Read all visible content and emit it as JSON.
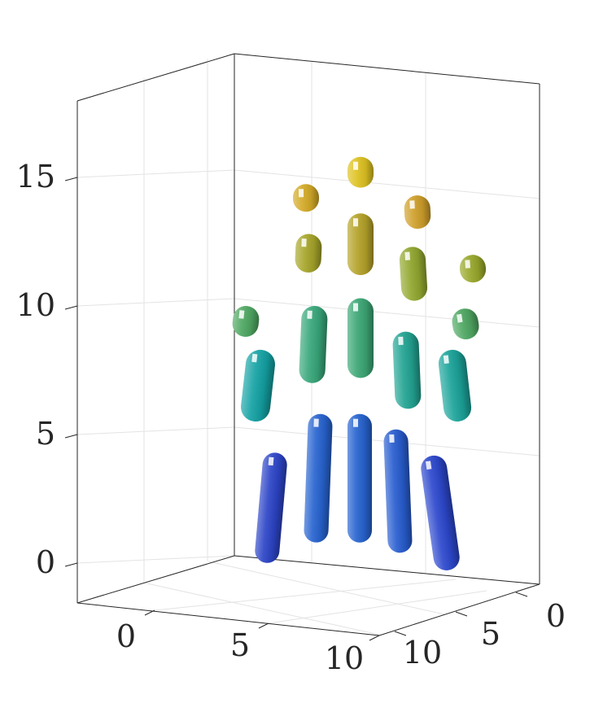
{
  "chart_data": {
    "type": "3d-surface",
    "title": "",
    "xlabel": "",
    "ylabel": "",
    "zlabel": "",
    "xlim": [
      -2,
      11
    ],
    "ylim": [
      -1,
      11
    ],
    "zlim": [
      -1.5,
      18
    ],
    "grid": true,
    "x_ticks": [
      "0",
      "5",
      "10"
    ],
    "y_ticks": [
      "0",
      "5",
      "10"
    ],
    "z_ticks": [
      "0",
      "5",
      "10",
      "15"
    ],
    "colormap": "parula",
    "colormap_stops": [
      "#2a1f8a",
      "#2c49d0",
      "#1f8ad0",
      "#14a3a3",
      "#46a86a",
      "#9aa82a",
      "#cf9f2a",
      "#e6d51c"
    ],
    "capsules": [
      {
        "id": "row1-col1",
        "z_start": 0,
        "z_end": 4.3,
        "color_value": 2.0
      },
      {
        "id": "row1-col2",
        "z_start": 0.8,
        "z_end": 5.8,
        "color_value": 3.2
      },
      {
        "id": "row1-col3",
        "z_start": 0.8,
        "z_end": 5.8,
        "color_value": 3.2
      },
      {
        "id": "row1-col4",
        "z_start": 0.4,
        "z_end": 5.2,
        "color_value": 3.0
      },
      {
        "id": "row1-col5",
        "z_start": -0.3,
        "z_end": 4.2,
        "color_value": 2.2
      },
      {
        "id": "row2-col1",
        "z_start": 5.5,
        "z_end": 8.3,
        "color_value": 6.8
      },
      {
        "id": "row2-col2",
        "z_start": 7.0,
        "z_end": 10.0,
        "color_value": 8.5
      },
      {
        "id": "row2-col3",
        "z_start": 7.2,
        "z_end": 10.3,
        "color_value": 8.7
      },
      {
        "id": "row2-col4",
        "z_start": 6.0,
        "z_end": 9.0,
        "color_value": 7.5
      },
      {
        "id": "row2-col5",
        "z_start": 5.5,
        "z_end": 8.3,
        "color_value": 7.2
      },
      {
        "id": "row3-col1",
        "z_start": 8.8,
        "z_end": 10.0,
        "color_value": 9.4
      },
      {
        "id": "row3-col2",
        "z_start": 11.3,
        "z_end": 12.8,
        "color_value": 12.0
      },
      {
        "id": "row3-col3",
        "z_start": 11.2,
        "z_end": 13.6,
        "color_value": 12.6
      },
      {
        "id": "row3-col4",
        "z_start": 10.2,
        "z_end": 12.3,
        "color_value": 11.2
      },
      {
        "id": "row3-col5",
        "z_start": 8.7,
        "z_end": 9.9,
        "color_value": 9.4
      },
      {
        "id": "row4-col2",
        "z_start": 13.8,
        "z_end": 14.6,
        "color_value": 14.2
      },
      {
        "id": "row4-col3",
        "z_start": 14.6,
        "z_end": 15.8,
        "color_value": 15.2
      },
      {
        "id": "row4-col4",
        "z_start": 13.0,
        "z_end": 14.3,
        "color_value": 13.7
      },
      {
        "id": "row4-col5",
        "z_start": 11.0,
        "z_end": 11.9,
        "color_value": 11.4
      }
    ]
  }
}
